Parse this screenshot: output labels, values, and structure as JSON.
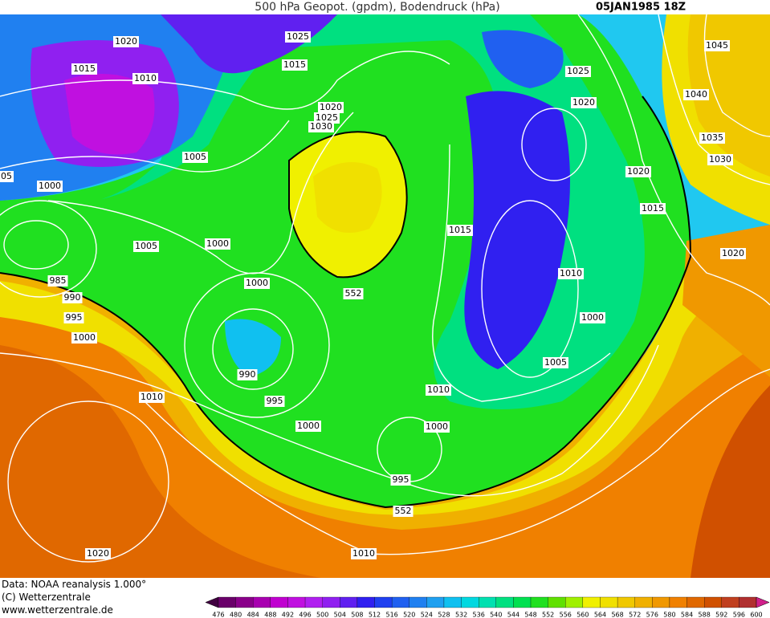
{
  "header": {
    "title": "500 hPa Geopot. (gpdm), Bodendruck (hPa)",
    "date": "05JAN1985 18Z"
  },
  "footer": {
    "source": "Data: NOAA reanalysis 1.000°",
    "copyright": "(C) Wetterzentrale",
    "url": "www.wetterzentrale.de"
  },
  "isobar_labels": [
    "1020",
    "1015",
    "1010",
    "1025",
    "1015",
    "1020",
    "1025",
    "1030",
    "1005",
    "05",
    "1000",
    "1005",
    "1000",
    "985",
    "990",
    "995",
    "1000",
    "1000",
    "552",
    "990",
    "995",
    "1010",
    "1000",
    "1010",
    "1000",
    "995",
    "552",
    "1010",
    "1020",
    "1015",
    "1025",
    "1020",
    "1020",
    "1015",
    "1010",
    "1000",
    "1005",
    "1045",
    "1040",
    "1035",
    "1030",
    "1020"
  ],
  "colorbar": {
    "labels": [
      "476",
      "480",
      "484",
      "488",
      "492",
      "496",
      "500",
      "504",
      "508",
      "512",
      "516",
      "520",
      "524",
      "528",
      "532",
      "536",
      "540",
      "544",
      "548",
      "552",
      "556",
      "560",
      "564",
      "568",
      "572",
      "576",
      "580",
      "584",
      "588",
      "592",
      "596",
      "600"
    ],
    "colors": [
      "#6a006a",
      "#8a008a",
      "#a800b0",
      "#c000d0",
      "#c010e0",
      "#b020f0",
      "#9020f0",
      "#6020f0",
      "#3020f0",
      "#2040f0",
      "#2060f0",
      "#2080f0",
      "#20a0f0",
      "#10c0f0",
      "#00d8e0",
      "#00e0b0",
      "#00e080",
      "#00e050",
      "#20e020",
      "#60e000",
      "#a0f000",
      "#f0f000",
      "#f0e000",
      "#f0c800",
      "#f0b000",
      "#f09800",
      "#f08000",
      "#e06800",
      "#d05000",
      "#c04020",
      "#b03030"
    ],
    "low_color": "#400040",
    "high_color": "#d0208a"
  }
}
